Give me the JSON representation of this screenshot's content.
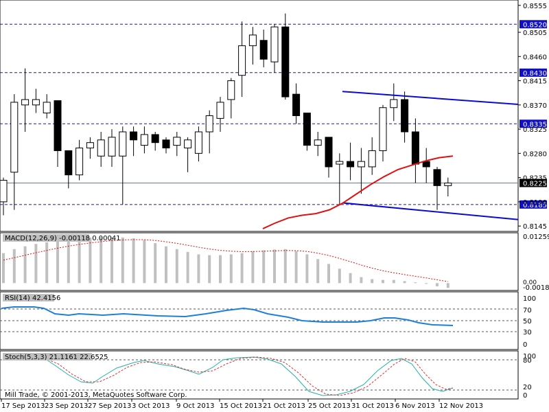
{
  "chart_data": [
    {
      "type": "candlestick",
      "pane": "price",
      "x_ticks": [
        "17 Sep 2013",
        "23 Sep 2013",
        "27 Sep 2013",
        "3 Oct 2013",
        "9 Oct 2013",
        "15 Oct 2013",
        "21 Oct 2013",
        "25 Oct 2013",
        "31 Oct 2013",
        "6 Nov 2013",
        "12 Nov 2013"
      ],
      "y_ticks": [
        "0.8555",
        "0.8505",
        "0.8460",
        "0.8415",
        "0.8370",
        "0.8325",
        "0.8280",
        "0.8235",
        "0.8190",
        "0.8145"
      ],
      "ylim": [
        0.8135,
        0.8565
      ],
      "current_price": "0.8225",
      "levels": [
        {
          "value": 0.852,
          "label": "0.8520"
        },
        {
          "value": 0.843,
          "label": "0.8430"
        },
        {
          "value": 0.8335,
          "label": "0.8335"
        },
        {
          "value": 0.8185,
          "label": "0.8185"
        }
      ],
      "candles": [
        {
          "o": 0.819,
          "h": 0.8235,
          "l": 0.8165,
          "c": 0.823
        },
        {
          "o": 0.8245,
          "h": 0.839,
          "l": 0.8175,
          "c": 0.8375
        },
        {
          "o": 0.837,
          "h": 0.8438,
          "l": 0.832,
          "c": 0.838
        },
        {
          "o": 0.837,
          "h": 0.84,
          "l": 0.8355,
          "c": 0.838
        },
        {
          "o": 0.8355,
          "h": 0.839,
          "l": 0.8345,
          "c": 0.8375
        },
        {
          "o": 0.8378,
          "h": 0.8378,
          "l": 0.8255,
          "c": 0.8285
        },
        {
          "o": 0.8285,
          "h": 0.8285,
          "l": 0.8215,
          "c": 0.824
        },
        {
          "o": 0.824,
          "h": 0.8305,
          "l": 0.823,
          "c": 0.829
        },
        {
          "o": 0.829,
          "h": 0.831,
          "l": 0.827,
          "c": 0.83
        },
        {
          "o": 0.8275,
          "h": 0.832,
          "l": 0.8255,
          "c": 0.8305
        },
        {
          "o": 0.8275,
          "h": 0.8325,
          "l": 0.8255,
          "c": 0.831
        },
        {
          "o": 0.8275,
          "h": 0.833,
          "l": 0.8185,
          "c": 0.832
        },
        {
          "o": 0.832,
          "h": 0.833,
          "l": 0.8275,
          "c": 0.8305
        },
        {
          "o": 0.8295,
          "h": 0.833,
          "l": 0.828,
          "c": 0.8315
        },
        {
          "o": 0.8315,
          "h": 0.832,
          "l": 0.8285,
          "c": 0.83
        },
        {
          "o": 0.8305,
          "h": 0.831,
          "l": 0.828,
          "c": 0.829
        },
        {
          "o": 0.8295,
          "h": 0.832,
          "l": 0.8275,
          "c": 0.831
        },
        {
          "o": 0.829,
          "h": 0.831,
          "l": 0.8245,
          "c": 0.8305
        },
        {
          "o": 0.828,
          "h": 0.833,
          "l": 0.8265,
          "c": 0.832
        },
        {
          "o": 0.832,
          "h": 0.836,
          "l": 0.828,
          "c": 0.835
        },
        {
          "o": 0.8345,
          "h": 0.8385,
          "l": 0.832,
          "c": 0.8375
        },
        {
          "o": 0.838,
          "h": 0.842,
          "l": 0.8345,
          "c": 0.8415
        },
        {
          "o": 0.8425,
          "h": 0.8525,
          "l": 0.8385,
          "c": 0.848
        },
        {
          "o": 0.848,
          "h": 0.8515,
          "l": 0.8445,
          "c": 0.85
        },
        {
          "o": 0.849,
          "h": 0.851,
          "l": 0.844,
          "c": 0.8455
        },
        {
          "o": 0.845,
          "h": 0.852,
          "l": 0.843,
          "c": 0.8515
        },
        {
          "o": 0.8515,
          "h": 0.854,
          "l": 0.838,
          "c": 0.8385
        },
        {
          "o": 0.839,
          "h": 0.841,
          "l": 0.8335,
          "c": 0.835
        },
        {
          "o": 0.8355,
          "h": 0.8355,
          "l": 0.8285,
          "c": 0.8295
        },
        {
          "o": 0.8295,
          "h": 0.832,
          "l": 0.8275,
          "c": 0.8305
        },
        {
          "o": 0.831,
          "h": 0.831,
          "l": 0.8235,
          "c": 0.8255
        },
        {
          "o": 0.826,
          "h": 0.828,
          "l": 0.8185,
          "c": 0.8265
        },
        {
          "o": 0.8265,
          "h": 0.83,
          "l": 0.823,
          "c": 0.8255
        },
        {
          "o": 0.8255,
          "h": 0.829,
          "l": 0.8205,
          "c": 0.8265
        },
        {
          "o": 0.8255,
          "h": 0.831,
          "l": 0.824,
          "c": 0.8285
        },
        {
          "o": 0.8285,
          "h": 0.837,
          "l": 0.8265,
          "c": 0.8365
        },
        {
          "o": 0.8365,
          "h": 0.841,
          "l": 0.834,
          "c": 0.838
        },
        {
          "o": 0.838,
          "h": 0.8395,
          "l": 0.83,
          "c": 0.832
        },
        {
          "o": 0.832,
          "h": 0.8345,
          "l": 0.8225,
          "c": 0.826
        },
        {
          "o": 0.8265,
          "h": 0.829,
          "l": 0.8225,
          "c": 0.8255
        },
        {
          "o": 0.825,
          "h": 0.8255,
          "l": 0.8175,
          "c": 0.822
        },
        {
          "o": 0.822,
          "h": 0.8235,
          "l": 0.82,
          "c": 0.8225
        }
      ]
    },
    {
      "type": "histogram",
      "pane": "MACD",
      "label": "MACD(12,26,9) -0.00118 0.00041",
      "y_ticks": [
        "0.01259",
        "0.00",
        "-0.00184"
      ],
      "ylim": [
        -0.00184,
        0.01259
      ],
      "values": [
        0.0075,
        0.0085,
        0.0092,
        0.0098,
        0.0102,
        0.0108,
        0.011,
        0.0112,
        0.0114,
        0.0115,
        0.0115,
        0.0114,
        0.0112,
        0.0108,
        0.01,
        0.0092,
        0.0085,
        0.0078,
        0.0072,
        0.007,
        0.007,
        0.0072,
        0.0075,
        0.008,
        0.0082,
        0.0084,
        0.0085,
        0.008,
        0.0072,
        0.006,
        0.0048,
        0.0036,
        0.0025,
        0.0015,
        0.001,
        0.0008,
        0.0008,
        0.0005,
        0.0002,
        -0.0002,
        -0.0008,
        -0.0012
      ]
    },
    {
      "type": "line",
      "pane": "RSI",
      "label": "RSI(14) 42.4156",
      "y_ticks": [
        "100",
        "70",
        "50",
        "30",
        "0"
      ],
      "ylim": [
        0,
        100
      ]
    },
    {
      "type": "line",
      "pane": "Stochastic",
      "label": "Stoch(5,3,3) 21.1161 22.6525",
      "y_ticks": [
        "100",
        "80",
        "20",
        "0"
      ],
      "ylim": [
        0,
        100
      ]
    }
  ],
  "copyright": "Mill Trade, © 2001-2013, MetaQuotes Software Corp."
}
